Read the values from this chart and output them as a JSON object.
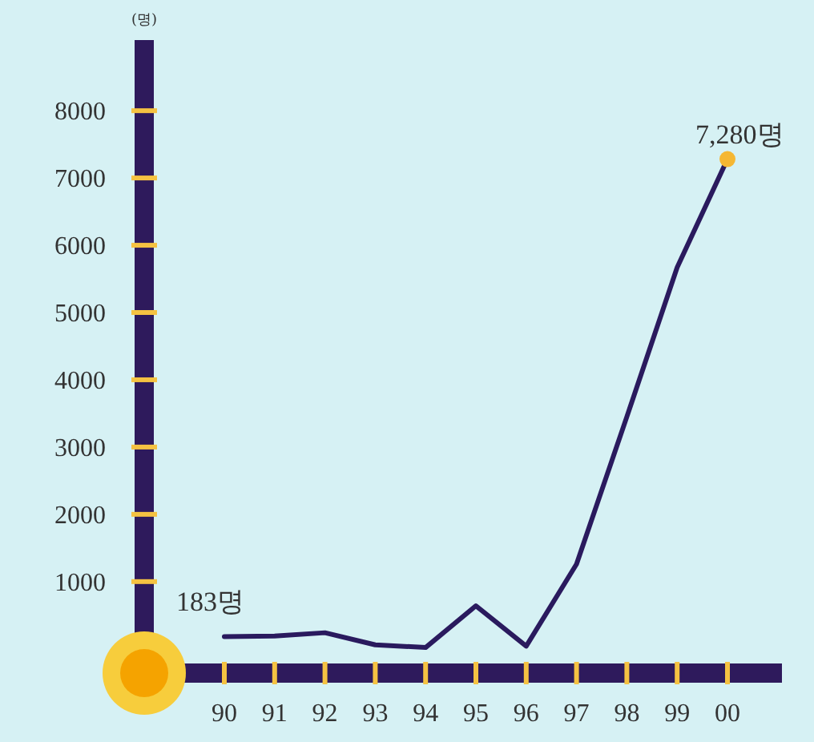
{
  "chart_data": {
    "type": "line",
    "ylabel": "(명)",
    "categories": [
      "90",
      "91",
      "92",
      "93",
      "94",
      "95",
      "96",
      "97",
      "98",
      "99",
      "00"
    ],
    "series": [
      {
        "color": "#2a1a5e",
        "values": [
          183,
          190,
          240,
          60,
          20,
          640,
          40,
          1260,
          3450,
          5670,
          7280
        ]
      }
    ],
    "ylim": [
      -360,
      9050
    ],
    "yticks": [
      1000,
      2000,
      3000,
      4000,
      5000,
      6000,
      7000,
      8000
    ],
    "marker": "none",
    "line_style": "solid",
    "annotations": [
      {
        "text": "183명",
        "x": "90",
        "y": 183
      },
      {
        "text": "7,280명",
        "x": "00",
        "y": 7280
      }
    ]
  }
}
